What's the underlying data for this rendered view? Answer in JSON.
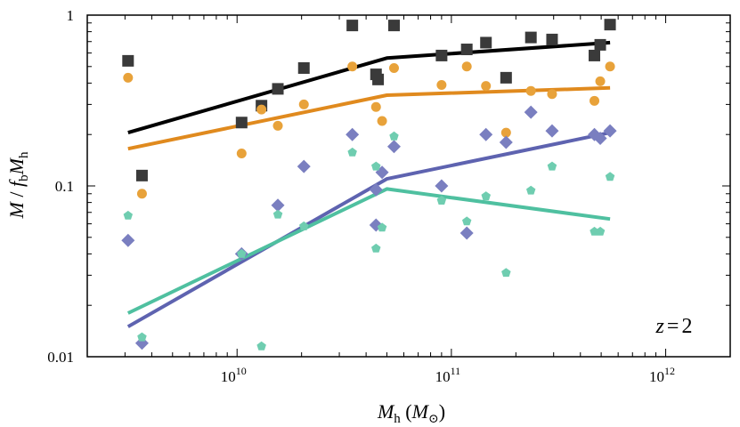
{
  "chart_data": {
    "type": "scatter",
    "title": "",
    "xlabel": "M_h (M_⊙)",
    "ylabel": "M / f_b M_h",
    "xscale": "log",
    "yscale": "log",
    "xlim": [
      2000000000,
      2000000000000
    ],
    "ylim": [
      0.01,
      1
    ],
    "xticks": [
      {
        "value": 10000000000,
        "base": "10",
        "exp": "10"
      },
      {
        "value": 100000000000,
        "base": "10",
        "exp": "11"
      },
      {
        "value": 1000000000000,
        "base": "10",
        "exp": "12"
      }
    ],
    "yticks": [
      {
        "value": 1,
        "label": "1"
      },
      {
        "value": 0.1,
        "label": "0.1"
      },
      {
        "value": 0.01,
        "label": "0.01"
      }
    ],
    "annotation": {
      "var": "z",
      "eq": "=",
      "val": "2"
    },
    "grid": false,
    "series": [
      {
        "marker": "square",
        "color": "#3a3a3a",
        "points": [
          [
            3100000000.0,
            0.54
          ],
          [
            3600000000.0,
            0.115
          ],
          [
            10500000000.0,
            0.235
          ],
          [
            13000000000.0,
            0.295
          ],
          [
            15500000000.0,
            0.37
          ],
          [
            20500000000.0,
            0.49
          ],
          [
            34500000000.0,
            0.87
          ],
          [
            44500000000.0,
            0.45
          ],
          [
            45500000000.0,
            0.42
          ],
          [
            54000000000.0,
            0.87
          ],
          [
            90000000000.0,
            0.58
          ],
          [
            118000000000.0,
            0.63
          ],
          [
            145000000000.0,
            0.69
          ],
          [
            180000000000.0,
            0.43
          ],
          [
            235000000000.0,
            0.74
          ],
          [
            295000000000.0,
            0.72
          ],
          [
            465000000000.0,
            0.58
          ],
          [
            495000000000.0,
            0.67
          ],
          [
            550000000000.0,
            0.88
          ]
        ]
      },
      {
        "marker": "circle",
        "color": "#e8a23a",
        "points": [
          [
            3100000000.0,
            0.43
          ],
          [
            3600000000.0,
            0.09
          ],
          [
            10500000000.0,
            0.155
          ],
          [
            13000000000.0,
            0.28
          ],
          [
            15500000000.0,
            0.225
          ],
          [
            20500000000.0,
            0.3
          ],
          [
            34500000000.0,
            0.5
          ],
          [
            44500000000.0,
            0.29
          ],
          [
            47500000000.0,
            0.24
          ],
          [
            54000000000.0,
            0.49
          ],
          [
            90000000000.0,
            0.39
          ],
          [
            118000000000.0,
            0.5
          ],
          [
            145000000000.0,
            0.385
          ],
          [
            180000000000.0,
            0.205
          ],
          [
            235000000000.0,
            0.36
          ],
          [
            295000000000.0,
            0.345
          ],
          [
            465000000000.0,
            0.315
          ],
          [
            495000000000.0,
            0.41
          ],
          [
            550000000000.0,
            0.5
          ]
        ]
      },
      {
        "marker": "diamond",
        "color": "#7a7fc0",
        "points": [
          [
            3100000000.0,
            0.048
          ],
          [
            3600000000.0,
            0.012
          ],
          [
            10500000000.0,
            0.04
          ],
          [
            15500000000.0,
            0.077
          ],
          [
            20500000000.0,
            0.13
          ],
          [
            34500000000.0,
            0.2
          ],
          [
            44500000000.0,
            0.059
          ],
          [
            44500000000.0,
            0.095
          ],
          [
            47500000000.0,
            0.12
          ],
          [
            54000000000.0,
            0.17
          ],
          [
            90000000000.0,
            0.1
          ],
          [
            118000000000.0,
            0.053
          ],
          [
            145000000000.0,
            0.2
          ],
          [
            180000000000.0,
            0.18
          ],
          [
            235000000000.0,
            0.27
          ],
          [
            295000000000.0,
            0.21
          ],
          [
            465000000000.0,
            0.2
          ],
          [
            495000000000.0,
            0.19
          ],
          [
            550000000000.0,
            0.21
          ]
        ]
      },
      {
        "marker": "pentagon",
        "color": "#6fcdb0",
        "points": [
          [
            3100000000.0,
            0.067
          ],
          [
            3600000000.0,
            0.013
          ],
          [
            10500000000.0,
            0.04
          ],
          [
            13000000000.0,
            0.0115
          ],
          [
            15500000000.0,
            0.068
          ],
          [
            20500000000.0,
            0.058
          ],
          [
            34500000000.0,
            0.157
          ],
          [
            44500000000.0,
            0.043
          ],
          [
            44500000000.0,
            0.13
          ],
          [
            47500000000.0,
            0.057
          ],
          [
            54000000000.0,
            0.195
          ],
          [
            90000000000.0,
            0.082
          ],
          [
            118000000000.0,
            0.062
          ],
          [
            145000000000.0,
            0.087
          ],
          [
            180000000000.0,
            0.031
          ],
          [
            235000000000.0,
            0.094
          ],
          [
            295000000000.0,
            0.13
          ],
          [
            465000000000.0,
            0.054
          ],
          [
            495000000000.0,
            0.054
          ],
          [
            550000000000.0,
            0.113
          ]
        ]
      }
    ],
    "lines": [
      {
        "color": "#000000",
        "points": [
          [
            3100000000.0,
            0.205
          ],
          [
            50000000000.0,
            0.56
          ],
          [
            550000000000.0,
            0.69
          ]
        ]
      },
      {
        "color": "#e08a1e",
        "points": [
          [
            3100000000.0,
            0.165
          ],
          [
            50000000000.0,
            0.34
          ],
          [
            550000000000.0,
            0.375
          ]
        ]
      },
      {
        "color": "#5e63b0",
        "points": [
          [
            3100000000.0,
            0.015
          ],
          [
            50000000000.0,
            0.11
          ],
          [
            550000000000.0,
            0.205
          ]
        ]
      },
      {
        "color": "#4fc0a0",
        "points": [
          [
            3100000000.0,
            0.018
          ],
          [
            50000000000.0,
            0.096
          ],
          [
            550000000000.0,
            0.064
          ]
        ]
      }
    ]
  }
}
